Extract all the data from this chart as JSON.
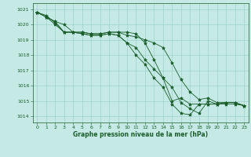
{
  "title": "Graphe pression niveau de la mer (hPa)",
  "bg_color": "#c5eae5",
  "grid_color": "#96ccc7",
  "line_color": "#1a5c2a",
  "xlim": [
    -0.5,
    23.5
  ],
  "ylim": [
    1013.6,
    1021.4
  ],
  "yticks": [
    1014,
    1015,
    1016,
    1017,
    1018,
    1019,
    1020,
    1021
  ],
  "xticks": [
    0,
    1,
    2,
    3,
    4,
    5,
    6,
    7,
    8,
    9,
    10,
    11,
    12,
    13,
    14,
    15,
    16,
    17,
    18,
    19,
    20,
    21,
    22,
    23
  ],
  "series": [
    [
      1020.8,
      1020.5,
      1020.2,
      1020.0,
      1019.5,
      1019.5,
      1019.4,
      1019.4,
      1019.5,
      1019.5,
      1019.3,
      1019.2,
      1019.0,
      1018.8,
      1018.5,
      1017.5,
      1016.4,
      1015.6,
      1015.1,
      1015.2,
      1014.9,
      1014.9,
      1014.9,
      1014.7
    ],
    [
      1020.8,
      1020.5,
      1020.0,
      1019.5,
      1019.5,
      1019.4,
      1019.3,
      1019.3,
      1019.4,
      1019.3,
      1018.8,
      1018.5,
      1017.7,
      1017.1,
      1016.5,
      1015.9,
      1014.9,
      1014.5,
      1014.2,
      1015.0,
      1014.8,
      1014.8,
      1014.8,
      1014.7
    ],
    [
      1020.8,
      1020.6,
      1020.1,
      1019.5,
      1019.5,
      1019.4,
      1019.3,
      1019.3,
      1019.4,
      1019.3,
      1018.8,
      1018.0,
      1017.4,
      1016.5,
      1015.9,
      1014.8,
      1014.2,
      1014.1,
      1014.8,
      1014.8,
      1014.8,
      1014.9,
      1014.9,
      1014.7
    ],
    [
      1020.8,
      1020.5,
      1020.2,
      1019.5,
      1019.5,
      1019.5,
      1019.4,
      1019.4,
      1019.5,
      1019.5,
      1019.5,
      1019.4,
      1018.8,
      1017.7,
      1016.5,
      1015.0,
      1015.2,
      1014.8,
      1014.8,
      1014.8,
      1014.8,
      1014.9,
      1014.9,
      1014.7
    ]
  ],
  "figsize": [
    3.2,
    2.0
  ],
  "dpi": 100
}
